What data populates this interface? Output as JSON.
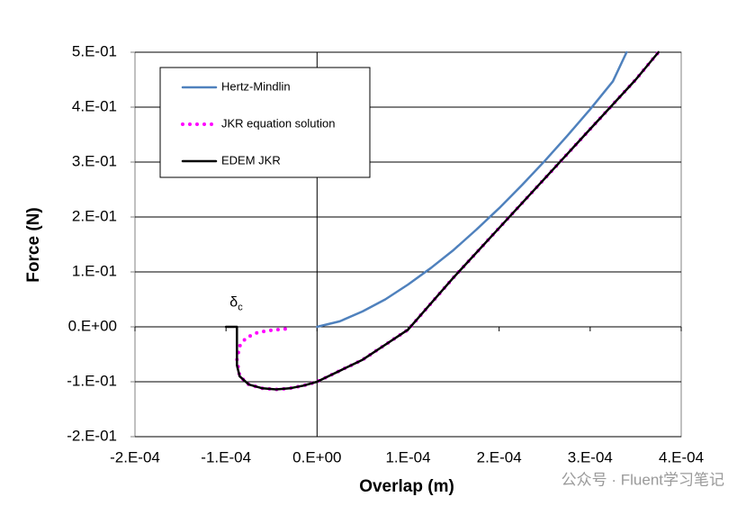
{
  "chart_data": {
    "type": "line",
    "xlabel": "Overlap (m)",
    "ylabel": "Force (N)",
    "xlim": [
      -0.0002,
      0.0004
    ],
    "xticks": [
      {
        "value": -0.0002,
        "label": "-2.E-04"
      },
      {
        "value": -0.0001,
        "label": "-1.E-04"
      },
      {
        "value": 0,
        "label": "0.E+00"
      },
      {
        "value": 0.0001,
        "label": "1.E-04"
      },
      {
        "value": 0.0002,
        "label": "2.E-04"
      },
      {
        "value": 0.0003,
        "label": "3.E-04"
      },
      {
        "value": 0.0004,
        "label": "4.E-04"
      }
    ],
    "ylim": [
      -0.2,
      0.5
    ],
    "yticks": [
      {
        "value": 0.5,
        "label": "5.E-01"
      },
      {
        "value": 0.4,
        "label": "4.E-01"
      },
      {
        "value": 0.3,
        "label": "3.E-01"
      },
      {
        "value": 0.2,
        "label": "2.E-01"
      },
      {
        "value": 0.1,
        "label": "1.E-01"
      },
      {
        "value": 0,
        "label": "0.E+00"
      },
      {
        "value": -0.1,
        "label": "-1.E-01"
      },
      {
        "value": -0.2,
        "label": "-2.E-01"
      }
    ],
    "grid": true,
    "legend": "upper left",
    "annotations": [
      {
        "text": "δ",
        "sub": "c",
        "x": -9e-05,
        "y": 0.027
      }
    ],
    "watermark": "公众号 · Fluent学习笔记",
    "series": [
      {
        "name": "Hertz-Mindlin",
        "color": "#4f81bd",
        "style": "solid",
        "x": [
          0,
          2.5e-05,
          5e-05,
          7.5e-05,
          0.0001,
          0.000125,
          0.00015,
          0.000175,
          0.0002,
          0.000225,
          0.00025,
          0.000275,
          0.0003,
          0.000325,
          0.00034
        ],
        "values": [
          0,
          0.01,
          0.028,
          0.05,
          0.077,
          0.107,
          0.14,
          0.177,
          0.216,
          0.258,
          0.302,
          0.348,
          0.396,
          0.447,
          0.5
        ]
      },
      {
        "name": "JKR equation solution",
        "color": "#ff00ff",
        "style": "dotted",
        "x": [
          -3.5e-05,
          -5e-05,
          -6.5e-05,
          -7.8e-05,
          -8.5e-05,
          -8.8e-05,
          -8.5e-05,
          -7.5e-05,
          -6e-05,
          -4.5e-05,
          -3e-05,
          -1.5e-05,
          0,
          5e-05,
          0.0001,
          0.00015,
          0.0002,
          0.00025,
          0.0003,
          0.00035,
          0.000375
        ],
        "values": [
          -0.004,
          -0.006,
          -0.01,
          -0.02,
          -0.035,
          -0.06,
          -0.09,
          -0.105,
          -0.112,
          -0.114,
          -0.112,
          -0.107,
          -0.1,
          -0.06,
          -0.005,
          0.09,
          0.18,
          0.27,
          0.36,
          0.45,
          0.5
        ]
      },
      {
        "name": "EDEM JKR",
        "color": "#000000",
        "style": "solid",
        "x": [
          -0.0001,
          -8.8e-05,
          -8.8e-05,
          -8.5e-05,
          -7.5e-05,
          -6e-05,
          -4.5e-05,
          -3e-05,
          -1.5e-05,
          0,
          5e-05,
          0.0001,
          0.00015,
          0.0002,
          0.00025,
          0.0003,
          0.00035,
          0.000375
        ],
        "values": [
          0,
          0,
          -0.07,
          -0.09,
          -0.105,
          -0.112,
          -0.114,
          -0.112,
          -0.107,
          -0.1,
          -0.06,
          -0.005,
          0.09,
          0.18,
          0.27,
          0.36,
          0.45,
          0.5
        ]
      }
    ]
  }
}
